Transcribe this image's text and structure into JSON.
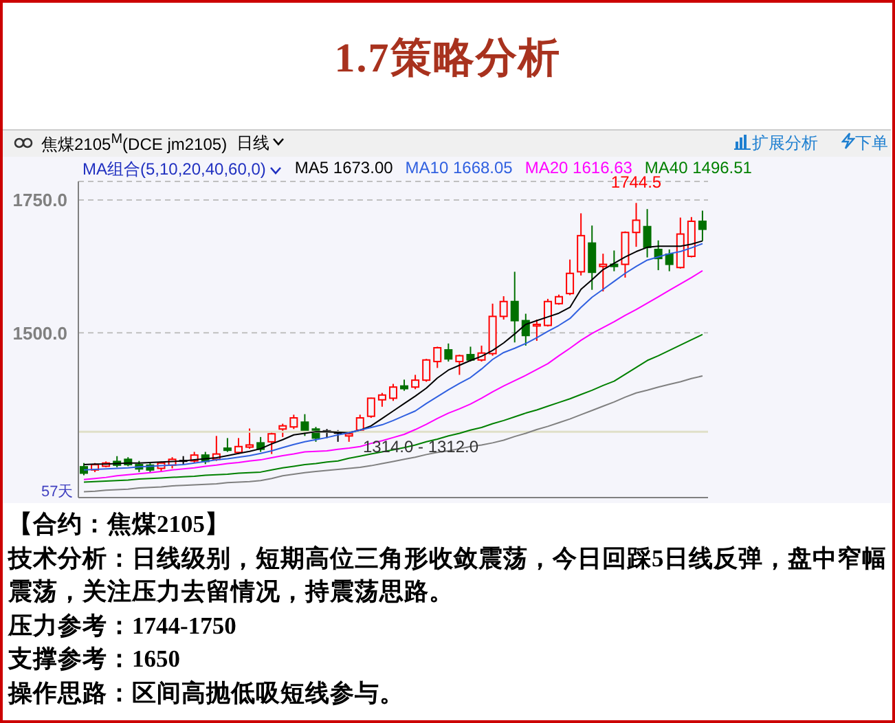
{
  "chart_data": {
    "type": "candlestick",
    "title": "1.7策略分析",
    "categories": [
      null,
      null,
      null,
      null,
      null,
      null,
      null,
      null,
      null,
      null,
      null,
      null,
      null,
      null,
      null,
      null,
      null,
      null,
      null,
      null,
      null,
      null,
      null,
      null,
      null,
      null,
      null,
      null,
      null,
      null,
      null,
      null,
      null,
      null,
      null,
      null,
      null,
      null,
      null,
      null,
      null,
      null,
      null,
      null,
      null,
      null,
      null,
      null,
      null,
      null,
      null,
      null,
      null,
      null,
      null,
      null,
      null
    ],
    "ohlc": [
      [
        1248,
        1255,
        1232,
        1236
      ],
      [
        1242,
        1255,
        1238,
        1252
      ],
      [
        1249,
        1258,
        1247,
        1255
      ],
      [
        1258,
        1268,
        1247,
        1251
      ],
      [
        1262,
        1266,
        1249,
        1252
      ],
      [
        1252,
        1259,
        1238,
        1244
      ],
      [
        1251,
        1255,
        1238,
        1242
      ],
      [
        1245,
        1258,
        1238,
        1255
      ],
      [
        1251,
        1266,
        1245,
        1262
      ],
      [
        1259,
        1268,
        1252,
        1259
      ],
      [
        1259,
        1276,
        1255,
        1270
      ],
      [
        1270,
        1276,
        1253,
        1258
      ],
      [
        1262,
        1306,
        1259,
        1272
      ],
      [
        1283,
        1302,
        1276,
        1279
      ],
      [
        1275,
        1302,
        1272,
        1286
      ],
      [
        1285,
        1320,
        1282,
        1289
      ],
      [
        1293,
        1304,
        1276,
        1281
      ],
      [
        1295,
        1315,
        1272,
        1310
      ],
      [
        1319,
        1329,
        1304,
        1325
      ],
      [
        1323,
        1346,
        1319,
        1340
      ],
      [
        1332,
        1347,
        1306,
        1315
      ],
      [
        1319,
        1323,
        1295,
        1302
      ],
      [
        1315,
        1319,
        1302,
        1315
      ],
      [
        1312,
        1317,
        1295,
        1312
      ],
      [
        1306,
        1315,
        1295,
        1310
      ],
      [
        1317,
        1346,
        1315,
        1340
      ],
      [
        1343,
        1378,
        1340,
        1377
      ],
      [
        1374,
        1387,
        1361,
        1383
      ],
      [
        1377,
        1404,
        1372,
        1398
      ],
      [
        1400,
        1412,
        1391,
        1395
      ],
      [
        1398,
        1421,
        1394,
        1411
      ],
      [
        1411,
        1451,
        1408,
        1449
      ],
      [
        1446,
        1474,
        1434,
        1472
      ],
      [
        1468,
        1480,
        1446,
        1451
      ],
      [
        1446,
        1459,
        1421,
        1457
      ],
      [
        1459,
        1474,
        1446,
        1449
      ],
      [
        1449,
        1476,
        1446,
        1462
      ],
      [
        1461,
        1555,
        1457,
        1531
      ],
      [
        1531,
        1569,
        1525,
        1559
      ],
      [
        1559,
        1615,
        1482,
        1523
      ],
      [
        1523,
        1536,
        1476,
        1495
      ],
      [
        1513,
        1525,
        1485,
        1516
      ],
      [
        1514,
        1564,
        1512,
        1559
      ],
      [
        1555,
        1572,
        1553,
        1568
      ],
      [
        1574,
        1638,
        1571,
        1612
      ],
      [
        1615,
        1725,
        1608,
        1683
      ],
      [
        1669,
        1702,
        1581,
        1614
      ],
      [
        1625,
        1649,
        1578,
        1629
      ],
      [
        1629,
        1655,
        1616,
        1625
      ],
      [
        1629,
        1691,
        1604,
        1689
      ],
      [
        1689,
        1744.5,
        1662,
        1712
      ],
      [
        1700,
        1733,
        1642,
        1661
      ],
      [
        1657,
        1674,
        1618,
        1640
      ],
      [
        1648,
        1657,
        1616,
        1629
      ],
      [
        1623,
        1717,
        1621,
        1686
      ],
      [
        1644,
        1718,
        1642,
        1710
      ],
      [
        1710,
        1730,
        1673,
        1695
      ]
    ],
    "colors": [
      "#007000",
      "#ff0000",
      "#ff0000",
      "#007000",
      "#007000",
      "#007000",
      "#007000",
      "#ff0000",
      "#ff0000",
      "#000000",
      "#ff0000",
      "#007000",
      "#ff0000",
      "#007000",
      "#ff0000",
      "#ff0000",
      "#007000",
      "#ff0000",
      "#ff0000",
      "#ff0000",
      "#007000",
      "#007000",
      "#000000",
      "#000000",
      "#ff0000",
      "#ff0000",
      "#ff0000",
      "#ff0000",
      "#ff0000",
      "#007000",
      "#ff0000",
      "#ff0000",
      "#ff0000",
      "#007000",
      "#ff0000",
      "#007000",
      "#ff0000",
      "#ff0000",
      "#ff0000",
      "#007000",
      "#007000",
      "#ff0000",
      "#ff0000",
      "#ff0000",
      "#ff0000",
      "#ff0000",
      "#007000",
      "#ff0000",
      "#007000",
      "#ff0000",
      "#ff0000",
      "#007000",
      "#007000",
      "#007000",
      "#ff0000",
      "#ff0000",
      "#007000"
    ],
    "series": [
      {
        "type": "line",
        "name": "MA5 1673.00",
        "color": "#000000",
        "values": [
          1252,
          1253,
          1253,
          1254,
          1255,
          1255,
          1256,
          1257,
          1258,
          1259,
          1261,
          1263,
          1265,
          1269,
          1273,
          1277,
          1282,
          1291,
          1299,
          1308,
          1311,
          1314,
          1314,
          1313,
          1312,
          1317,
          1325,
          1339,
          1353,
          1367,
          1381,
          1396,
          1415,
          1430,
          1439,
          1448,
          1456,
          1467,
          1481,
          1498,
          1516,
          1523,
          1530,
          1537,
          1548,
          1582,
          1600,
          1619,
          1631,
          1643,
          1653,
          1661,
          1663,
          1663,
          1663,
          1667,
          1673
        ]
      },
      {
        "type": "line",
        "name": "MA10 1668.05",
        "color": "#3060e0",
        "values": [
          1242,
          1243,
          1244,
          1245,
          1246,
          1248,
          1249,
          1250,
          1251,
          1252,
          1255,
          1258,
          1261,
          1263,
          1266,
          1269,
          1273,
          1278,
          1284,
          1290,
          1295,
          1299,
          1303,
          1308,
          1312,
          1317,
          1322,
          1327,
          1335,
          1344,
          1353,
          1367,
          1380,
          1393,
          1405,
          1416,
          1432,
          1450,
          1463,
          1471,
          1480,
          1491,
          1503,
          1514,
          1527,
          1548,
          1567,
          1582,
          1597,
          1612,
          1625,
          1637,
          1643,
          1649,
          1653,
          1660,
          1668
        ]
      },
      {
        "type": "line",
        "name": "MA20 1616.63",
        "color": "#ff00ff",
        "values": [
          1224,
          1226,
          1228,
          1231,
          1233,
          1235,
          1237,
          1239,
          1242,
          1244,
          1246,
          1249,
          1251,
          1254,
          1256,
          1259,
          1261,
          1265,
          1269,
          1272,
          1276,
          1277,
          1278,
          1281,
          1283,
          1286,
          1292,
          1297,
          1303,
          1309,
          1318,
          1328,
          1339,
          1349,
          1357,
          1366,
          1377,
          1389,
          1400,
          1410,
          1420,
          1431,
          1442,
          1457,
          1471,
          1486,
          1499,
          1510,
          1521,
          1533,
          1544,
          1556,
          1568,
          1580,
          1592,
          1604,
          1617
        ]
      },
      {
        "type": "line",
        "name": "MA40 1496.51",
        "color": "#008000",
        "values": [
          1219,
          1220,
          1221,
          1222,
          1223,
          1225,
          1226,
          1227,
          1228,
          1229,
          1230,
          1232,
          1233,
          1234,
          1236,
          1237,
          1238,
          1242,
          1246,
          1249,
          1252,
          1254,
          1257,
          1259,
          1264,
          1268,
          1272,
          1276,
          1280,
          1284,
          1289,
          1295,
          1300,
          1306,
          1311,
          1317,
          1322,
          1329,
          1335,
          1342,
          1349,
          1355,
          1362,
          1369,
          1376,
          1384,
          1392,
          1401,
          1409,
          1422,
          1435,
          1448,
          1457,
          1467,
          1477,
          1487,
          1497
        ]
      },
      {
        "type": "line",
        "color": "#808080",
        "values": [
          1201,
          1202,
          1204,
          1205,
          1206,
          1208,
          1209,
          1210,
          1212,
          1213,
          1214,
          1215,
          1216,
          1218,
          1219,
          1220,
          1222,
          1226,
          1231,
          1234,
          1237,
          1239,
          1241,
          1243,
          1245,
          1247,
          1250,
          1254,
          1258,
          1262,
          1266,
          1271,
          1275,
          1278,
          1282,
          1286,
          1289,
          1293,
          1298,
          1305,
          1311,
          1318,
          1324,
          1331,
          1338,
          1346,
          1354,
          1362,
          1370,
          1379,
          1387,
          1392,
          1398,
          1403,
          1408,
          1414,
          1419
        ]
      }
    ],
    "legend_title": "MA组合(5,10,20,40,60,0)",
    "legend": "top left",
    "ylim": [
      1190,
      1785
    ],
    "yticks": [
      {
        "value": 1500,
        "label": "1500.0"
      },
      {
        "value": 1750,
        "label": "1750.0"
      }
    ],
    "tick_labels": "y",
    "grid": "y",
    "ref_lines": [
      {
        "axis": "y",
        "value": 1314,
        "label": "1314.0 - 1312.0",
        "color": "#e0e0c8"
      }
    ],
    "annotations": [
      "1744.5",
      "57天",
      "焦煤2105$^{M}$(DCE jm2105)",
      "日线",
      "扩展分析",
      "下单",
      "【合约：焦煤2105】",
      "技术分析：日线级别，短期高位三角形收敛震荡，今日回踩5日线反弹，盘中窄幅震荡，关注压力去留情况，持震荡思路。",
      "压力参考：1744-1750",
      "支撑参考：1650",
      "操作思路：区间高抛低吸短线参与。"
    ]
  }
}
